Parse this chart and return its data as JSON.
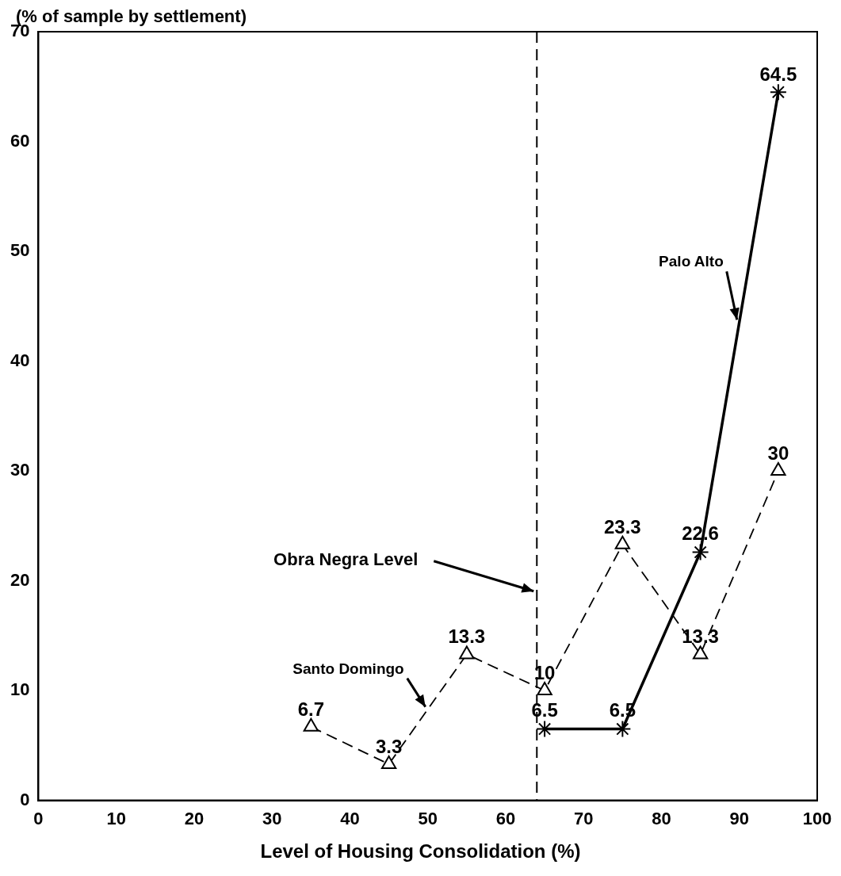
{
  "chart_data": {
    "type": "line",
    "ylabel": "(% of sample by settlement)",
    "xlabel": "Level of Housing Consolidation (%)",
    "xlim": [
      0,
      100
    ],
    "xticks": [
      0,
      10,
      20,
      30,
      40,
      50,
      60,
      70,
      80,
      90,
      100
    ],
    "ylim": [
      0,
      70
    ],
    "yticks": [
      0,
      10,
      20,
      30,
      40,
      50,
      60,
      70
    ],
    "grid": false,
    "legend": false,
    "data_labels": true,
    "series": [
      {
        "name": "Santo Domingo",
        "color": "#000000",
        "x": [
          35,
          45,
          55,
          65,
          75,
          85,
          95
        ],
        "values": [
          6.7,
          3.3,
          13.3,
          10,
          23.3,
          13.3,
          30
        ],
        "marker": "triangle",
        "line_style": "dashed"
      },
      {
        "name": "Palo Alto",
        "color": "#000000",
        "x": [
          65,
          75,
          85,
          95
        ],
        "values": [
          6.5,
          6.5,
          22.6,
          64.5
        ],
        "marker": "cross",
        "line_style": "solid"
      }
    ],
    "ref_lines": [
      {
        "axis": "x",
        "value": 64,
        "label": "Obra Negra Level",
        "color": "#000000",
        "line_style": "dashed"
      }
    ]
  }
}
